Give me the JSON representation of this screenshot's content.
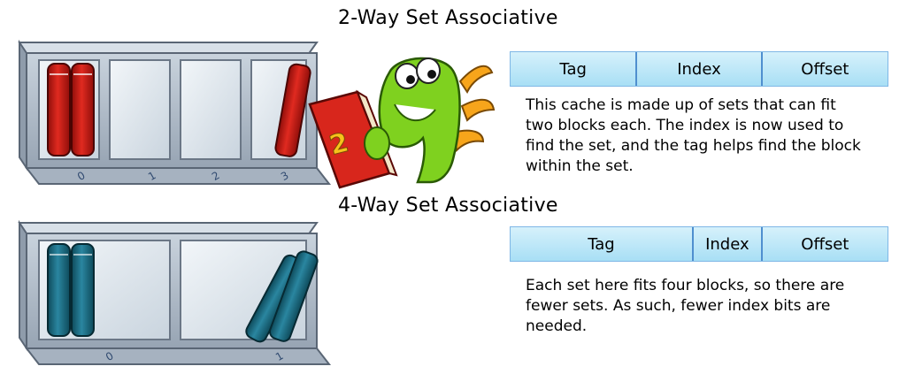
{
  "sections": [
    {
      "title": "2-Way Set Associative",
      "fields": [
        "Tag",
        "Index",
        "Offset"
      ],
      "description": "This cache is made up of sets that can fit two blocks each. The index is now used to find the set, and the tag helps find the block within the set.",
      "set_labels": [
        "0",
        "1",
        "2",
        "3"
      ]
    },
    {
      "title": "4-Way Set Associative",
      "fields": [
        "Tag",
        "Index",
        "Offset"
      ],
      "description": "Each set here fits four blocks, so there are fewer sets. As such, fewer index bits are needed.",
      "set_labels": [
        "0",
        "1"
      ]
    }
  ],
  "mascot_book_label": "2",
  "colors": {
    "shelf_frame": "#b4c0cd",
    "shelf_inner": "#dde5ec",
    "book_red": "#cc1a14",
    "book_teal": "#1f7186",
    "field_fill": "#b9e6f8",
    "field_border": "#4f8fcf",
    "mascot_green": "#7fd11f",
    "mascot_spikes": "#f7a51b"
  }
}
